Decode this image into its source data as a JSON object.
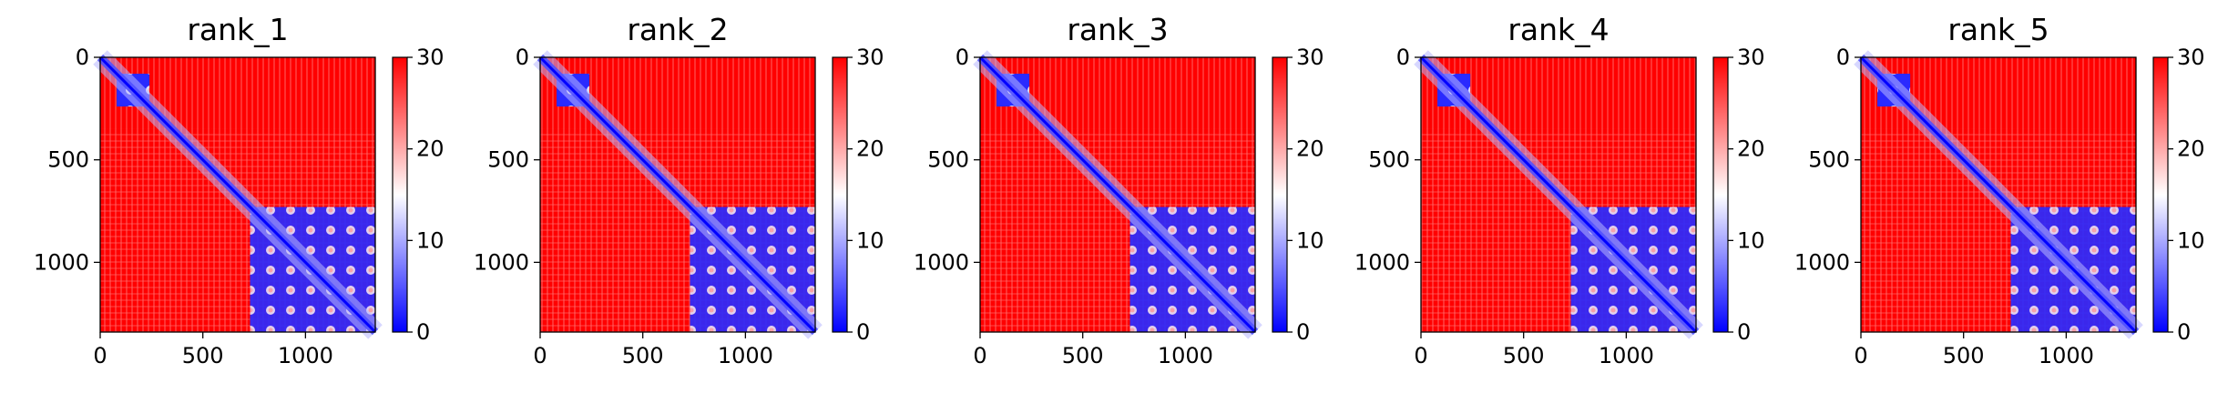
{
  "chart_data": [
    {
      "type": "heatmap",
      "title": "rank_1",
      "x_ticks": [
        "0",
        "500",
        "1000"
      ],
      "y_ticks": [
        "0",
        "500",
        "1000"
      ],
      "xlim": [
        0,
        1340
      ],
      "ylim": [
        1340,
        0
      ],
      "colorbar": {
        "ticks": [
          "0",
          "10",
          "20",
          "30"
        ],
        "range": [
          0,
          30
        ],
        "colormap": "bwr"
      }
    },
    {
      "type": "heatmap",
      "title": "rank_2",
      "x_ticks": [
        "0",
        "500",
        "1000"
      ],
      "y_ticks": [
        "0",
        "500",
        "1000"
      ],
      "xlim": [
        0,
        1340
      ],
      "ylim": [
        1340,
        0
      ],
      "colorbar": {
        "ticks": [
          "0",
          "10",
          "20",
          "30"
        ],
        "range": [
          0,
          30
        ],
        "colormap": "bwr"
      }
    },
    {
      "type": "heatmap",
      "title": "rank_3",
      "x_ticks": [
        "0",
        "500",
        "1000"
      ],
      "y_ticks": [
        "0",
        "500",
        "1000"
      ],
      "xlim": [
        0,
        1340
      ],
      "ylim": [
        1340,
        0
      ],
      "colorbar": {
        "ticks": [
          "0",
          "10",
          "20",
          "30"
        ],
        "range": [
          0,
          30
        ],
        "colormap": "bwr"
      }
    },
    {
      "type": "heatmap",
      "title": "rank_4",
      "x_ticks": [
        "0",
        "500",
        "1000"
      ],
      "y_ticks": [
        "0",
        "500",
        "1000"
      ],
      "xlim": [
        0,
        1340
      ],
      "ylim": [
        1340,
        0
      ],
      "colorbar": {
        "ticks": [
          "0",
          "10",
          "20",
          "30"
        ],
        "range": [
          0,
          30
        ],
        "colormap": "bwr"
      }
    },
    {
      "type": "heatmap",
      "title": "rank_5",
      "x_ticks": [
        "0",
        "500",
        "1000"
      ],
      "y_ticks": [
        "0",
        "500",
        "1000"
      ],
      "xlim": [
        0,
        1340
      ],
      "ylim": [
        1340,
        0
      ],
      "colorbar": {
        "ticks": [
          "0",
          "10",
          "20",
          "30"
        ],
        "range": [
          0,
          30
        ],
        "colormap": "bwr"
      }
    }
  ],
  "colors": {
    "high": "#ff0000",
    "mid": "#ffffff",
    "low": "#0000ff"
  }
}
